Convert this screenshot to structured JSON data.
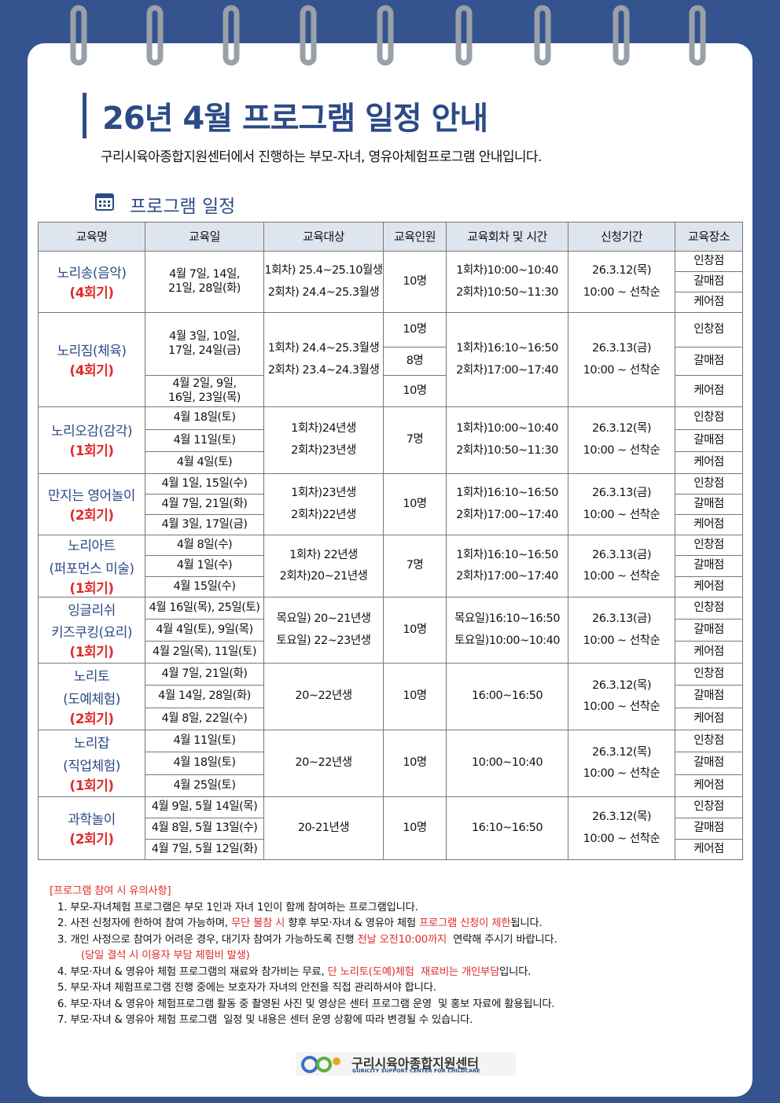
{
  "header": {
    "title": "26년 4월 프로그램 일정 안내",
    "subtitle": "구리시육아종합지원센터에서 진행하는 부모-자녀, 영유아체험프로그램 안내입니다.",
    "section": "프로그램 일정"
  },
  "table": {
    "columns": [
      "교육명",
      "교육일",
      "교육대상",
      "교육인원",
      "교육회차 및 시간",
      "신청기간",
      "교육장소"
    ],
    "groups": [
      {
        "name": [
          "노리송(음악)"
        ],
        "session": "(4회기)",
        "dates": [
          "4월 7일, 14일,\n21일, 28일(화)"
        ],
        "target": [
          "1회차) 25.4~25.10월생",
          "2회차) 24.4~25.3월생"
        ],
        "count": [
          "10명"
        ],
        "time": [
          "1회차)10:00~10:40",
          "2회차)10:50~11:30"
        ],
        "period": [
          "26.3.12(목)",
          "10:00 ~ 선착순"
        ],
        "places": [
          "인창점",
          "갈매점",
          "케어점"
        ]
      },
      {
        "name": [
          "노리짐(체육)"
        ],
        "session": "(4회기)",
        "dates": [
          "4월 3일, 10일,\n17일, 24일(금)",
          "4월 2일, 9일,\n16일, 23일(목)"
        ],
        "target": [
          "1회차) 24.4~25.3월생",
          "2회차) 23.4~24.3월생"
        ],
        "count": [
          "10명",
          "8명",
          "10명"
        ],
        "time": [
          "1회차)16:10~16:50",
          "2회차)17:00~17:40"
        ],
        "period": [
          "26.3.13(금)",
          "10:00 ~ 선착순"
        ],
        "places": [
          "인창점",
          "갈매점",
          "케어점"
        ]
      },
      {
        "name": [
          "노리오감(감각)"
        ],
        "session": "(1회기)",
        "dates": [
          "4월 18일(토)",
          "4월 11일(토)",
          "4월 4일(토)"
        ],
        "target": [
          "1회차)24년생",
          "2회차)23년생"
        ],
        "count": [
          "7명"
        ],
        "time": [
          "1회차)10:00~10:40",
          "2회차)10:50~11:30"
        ],
        "period": [
          "26.3.12(목)",
          "10:00 ~ 선착순"
        ],
        "places": [
          "인창점",
          "갈매점",
          "케어점"
        ]
      },
      {
        "name": [
          "만지는 영어놀이"
        ],
        "session": "(2회기)",
        "dates": [
          "4월 1일, 15일(수)",
          "4월 7일, 21일(화)",
          "4월 3일, 17일(금)"
        ],
        "target": [
          "1회차)23년생",
          "2회차)22년생"
        ],
        "count": [
          "10명"
        ],
        "time": [
          "1회차)16:10~16:50",
          "2회차)17:00~17:40"
        ],
        "period": [
          "26.3.13(금)",
          "10:00 ~ 선착순"
        ],
        "places": [
          "인창점",
          "갈매점",
          "케어점"
        ]
      },
      {
        "name": [
          "노리아트",
          "(퍼포먼스 미술)"
        ],
        "session": "(1회기)",
        "dates": [
          "4월 8일(수)",
          "4월 1일(수)",
          "4월 15일(수)"
        ],
        "target": [
          "1회차) 22년생",
          "2회차)20~21년생"
        ],
        "count": [
          "7명"
        ],
        "time": [
          "1회차)16:10~16:50",
          "2회차)17:00~17:40"
        ],
        "period": [
          "26.3.13(금)",
          "10:00 ~ 선착순"
        ],
        "places": [
          "인창점",
          "갈매점",
          "케어점"
        ]
      },
      {
        "name": [
          "잉글리쉬",
          "키즈쿠킹(요리)"
        ],
        "session": "(1회기)",
        "dates": [
          "4월 16일(목), 25일(토)",
          "4월 4일(토), 9일(목)",
          "4월 2일(목), 11일(토)"
        ],
        "target": [
          "목요일) 20~21년생",
          "토요일) 22~23년생"
        ],
        "count": [
          "10명"
        ],
        "time": [
          "목요일)16:10~16:50",
          "토요일)10:00~10:40"
        ],
        "period": [
          "26.3.13(금)",
          "10:00 ~ 선착순"
        ],
        "places": [
          "인창점",
          "갈매점",
          "케어점"
        ]
      },
      {
        "name": [
          "노리토",
          "(도예체험)"
        ],
        "session": "(2회기)",
        "dates": [
          "4월 7일, 21일(화)",
          "4월 14일, 28일(화)",
          "4월 8일, 22일(수)"
        ],
        "target": [
          "20~22년생"
        ],
        "count": [
          "10명"
        ],
        "time": [
          "16:00~16:50"
        ],
        "period": [
          "26.3.12(목)",
          "10:00 ~ 선착순"
        ],
        "places": [
          "인창점",
          "갈매점",
          "케어점"
        ]
      },
      {
        "name": [
          "노리잡",
          "(직업체험)"
        ],
        "session": "(1회기)",
        "dates": [
          "4월 11일(토)",
          "4월 18일(토)",
          "4월 25일(토)"
        ],
        "target": [
          "20~22년생"
        ],
        "count": [
          "10명"
        ],
        "time": [
          "10:00~10:40"
        ],
        "period": [
          "26.3.12(목)",
          "10:00 ~ 선착순"
        ],
        "places": [
          "인창점",
          "갈매점",
          "케어점"
        ]
      },
      {
        "name": [
          "과학놀이"
        ],
        "session": "(2회기)",
        "dates": [
          "4월 9일, 5월 14일(목)",
          "4월 8일, 5월 13일(수)",
          "4월 7일, 5월 12일(화)"
        ],
        "target": [
          "20-21년생"
        ],
        "count": [
          "10명"
        ],
        "time": [
          "16:10~16:50"
        ],
        "period": [
          "26.3.12(목)",
          "10:00 ~ 선착순"
        ],
        "places": [
          "인창점",
          "갈매점",
          "케어점"
        ]
      }
    ]
  },
  "notes": {
    "title": "[프로그램 참여 시 유의사항]",
    "items": [
      [
        {
          "text": "1. 부모-자녀체험 프로그램은 부모 1인과 자녀 1인이 함께 참여하는 프로그램입니다."
        }
      ],
      [
        {
          "text": "2. 사전 신청자에 한하여 참여 가능하며, "
        },
        {
          "text": "무단 불참 시",
          "color": "#e02b2b"
        },
        {
          "text": " 향후 부모·자녀 & 영유아 체험 "
        },
        {
          "text": "프로그램 신청이 제한",
          "color": "#e02b2b"
        },
        {
          "text": "됩니다."
        }
      ],
      [
        {
          "text": "3. 개인 사정으로 참여가 어려운 경우, 대기자 참여가 가능하도록 진행 "
        },
        {
          "text": "전날 오전10:00까지",
          "color": "#e02b2b"
        },
        {
          "text": "  연락해 주시기 바랍니다."
        }
      ],
      [
        {
          "text": "(당일 결석 시 이용자 부담 체험비 발생)",
          "color": "#e02b2b"
        }
      ],
      [
        {
          "text": "4. 부모·자녀 & 영유아 체험 프로그램의 재료와 참가비는 무료, "
        },
        {
          "text": "단 노리토(도예)체험  재료비는 개인부담",
          "color": "#e02b2b"
        },
        {
          "text": "입니다."
        }
      ],
      [
        {
          "text": "5. 부모·자녀 체험프로그램 진행 중에는 보호자가 자녀의 안전을 직접 관리하셔야 합니다."
        }
      ],
      [
        {
          "text": "6. 부모·자녀 & 영유아 체험프로그램 활동 중 촬영된 사진 및 영상은 센터 프로그램 운영  및 홍보 자료에 활용됩니다."
        }
      ],
      [
        {
          "text": "7. 부모·자녀 & 영유아 체험 프로그램  일정 및 내용은 센터 운영 상황에 따라 변경될 수 있습니다."
        }
      ]
    ]
  },
  "footer": {
    "name": "구리시육아종합지원센터",
    "english": "GURICITY SUPPORT CENTER FOR CHILDCARE"
  }
}
